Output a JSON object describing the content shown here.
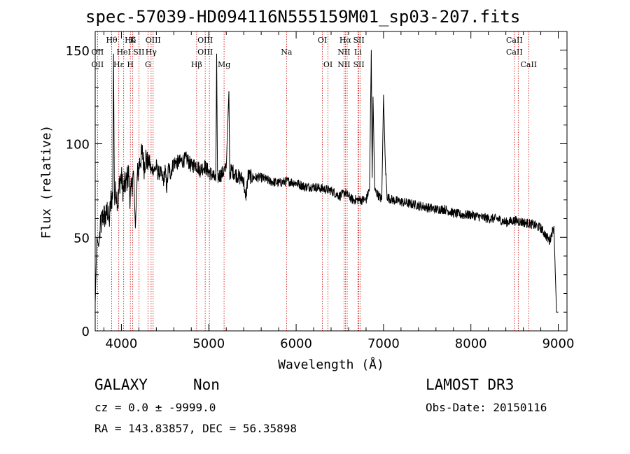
{
  "chart_data": {
    "type": "line",
    "title": "spec-57039-HD094116N555159M01_sp03-207.fits",
    "xlabel": "Wavelength (Å)",
    "ylabel": "Flux (relative)",
    "xlim": [
      3700,
      9100
    ],
    "ylim": [
      0,
      160
    ],
    "xticks": [
      4000,
      5000,
      6000,
      7000,
      8000,
      9000
    ],
    "yticks": [
      0,
      50,
      100,
      150
    ],
    "grid": false,
    "series": [
      {
        "name": "spectrum",
        "color": "#000000",
        "x": [
          3700,
          3720,
          3740,
          3760,
          3780,
          3800,
          3820,
          3840,
          3860,
          3880,
          3900,
          3910,
          3920,
          3940,
          3960,
          3980,
          4000,
          4020,
          4040,
          4060,
          4080,
          4100,
          4120,
          4140,
          4160,
          4180,
          4200,
          4220,
          4240,
          4260,
          4280,
          4300,
          4320,
          4340,
          4360,
          4380,
          4400,
          4420,
          4440,
          4460,
          4480,
          4500,
          4520,
          4540,
          4560,
          4580,
          4600,
          4650,
          4700,
          4750,
          4800,
          4850,
          4900,
          4950,
          5000,
          5050,
          5080,
          5090,
          5100,
          5150,
          5200,
          5230,
          5240,
          5260,
          5300,
          5350,
          5400,
          5420,
          5450,
          5500,
          5600,
          5700,
          5800,
          5900,
          6000,
          6100,
          6200,
          6300,
          6400,
          6500,
          6560,
          6600,
          6650,
          6700,
          6750,
          6800,
          6840,
          6860,
          6870,
          6880,
          6900,
          6950,
          6980,
          7000,
          7020,
          7040,
          7060,
          7100,
          7200,
          7300,
          7400,
          7500,
          7600,
          7700,
          7800,
          7900,
          8000,
          8100,
          8200,
          8300,
          8400,
          8500,
          8600,
          8700,
          8800,
          8900,
          8950,
          8980,
          9000
        ],
        "y": [
          15,
          50,
          45,
          55,
          60,
          62,
          60,
          65,
          58,
          70,
          72,
          148,
          70,
          75,
          68,
          80,
          82,
          75,
          78,
          80,
          85,
          70,
          78,
          84,
          55,
          82,
          88,
          92,
          95,
          88,
          93,
          89,
          91,
          85,
          87,
          86,
          88,
          84,
          85,
          83,
          80,
          86,
          76,
          88,
          84,
          87,
          90,
          90,
          91,
          92,
          88,
          89,
          86,
          88,
          85,
          83,
          80,
          148,
          82,
          84,
          87,
          128,
          84,
          86,
          84,
          82,
          81,
          70,
          83,
          82,
          82,
          80,
          79,
          80,
          79,
          77,
          77,
          76,
          75,
          72,
          74,
          72,
          70,
          70,
          70,
          70,
          76,
          150,
          82,
          125,
          75,
          72,
          70,
          126,
          90,
          72,
          71,
          70,
          69,
          68,
          67,
          66,
          65,
          65,
          63,
          62,
          62,
          61,
          60,
          60,
          58,
          59,
          58,
          57,
          55,
          48,
          56,
          10,
          10
        ]
      }
    ],
    "lines": [
      {
        "wl": 3727,
        "labels": [
          {
            "t": "OII",
            "row": 2
          },
          {
            "t": "OII",
            "row": 3
          }
        ]
      },
      {
        "wl": 3889,
        "labels": [
          {
            "t": "Hθ",
            "row": 1
          }
        ]
      },
      {
        "wl": 3970,
        "labels": [
          {
            "t": "Hε",
            "row": 3
          }
        ]
      },
      {
        "wl": 4026,
        "labels": [
          {
            "t": "HeI",
            "row": 2
          }
        ]
      },
      {
        "wl": 4102,
        "labels": [
          {
            "t": "Hδ",
            "row": 1
          },
          {
            "t": "H",
            "row": 3
          }
        ]
      },
      {
        "wl": 4130,
        "labels": [
          {
            "t": "K",
            "row": 1
          }
        ]
      },
      {
        "wl": 4200,
        "labels": [
          {
            "t": "SII",
            "row": 2
          }
        ]
      },
      {
        "wl": 4304,
        "labels": [
          {
            "t": "G",
            "row": 3
          }
        ]
      },
      {
        "wl": 4340,
        "labels": [
          {
            "t": "Hγ",
            "row": 2
          }
        ]
      },
      {
        "wl": 4363,
        "labels": [
          {
            "t": "OIII",
            "row": 1
          }
        ]
      },
      {
        "wl": 4861,
        "labels": [
          {
            "t": "Hβ",
            "row": 3
          }
        ]
      },
      {
        "wl": 4959,
        "labels": [
          {
            "t": "OIII",
            "row": 1
          },
          {
            "t": "OIII",
            "row": 2
          }
        ]
      },
      {
        "wl": 5007,
        "labels": []
      },
      {
        "wl": 5175,
        "labels": [
          {
            "t": "Mg",
            "row": 3
          }
        ]
      },
      {
        "wl": 5890,
        "labels": [
          {
            "t": "Na",
            "row": 2
          }
        ]
      },
      {
        "wl": 6300,
        "labels": [
          {
            "t": "OI",
            "row": 1
          }
        ]
      },
      {
        "wl": 6364,
        "labels": [
          {
            "t": "OI",
            "row": 3
          }
        ]
      },
      {
        "wl": 6548,
        "labels": [
          {
            "t": "NII",
            "row": 2
          },
          {
            "t": "NII",
            "row": 3
          }
        ]
      },
      {
        "wl": 6563,
        "labels": [
          {
            "t": "Hα",
            "row": 1
          }
        ]
      },
      {
        "wl": 6584,
        "labels": []
      },
      {
        "wl": 6707,
        "labels": [
          {
            "t": "Li",
            "row": 2
          }
        ]
      },
      {
        "wl": 6717,
        "labels": [
          {
            "t": "SII",
            "row": 1
          },
          {
            "t": "SII",
            "row": 3
          }
        ]
      },
      {
        "wl": 6731,
        "labels": []
      },
      {
        "wl": 8498,
        "labels": [
          {
            "t": "CaII",
            "row": 1
          },
          {
            "t": "CaII",
            "row": 2
          }
        ]
      },
      {
        "wl": 8542,
        "labels": []
      },
      {
        "wl": 8662,
        "labels": [
          {
            "t": "CaII",
            "row": 3
          }
        ]
      }
    ],
    "line_color": "#cc0000"
  },
  "info": {
    "object_class": "GALAXY",
    "object_subclass": "Non",
    "survey": "LAMOST DR3",
    "redshift": "cz = 0.0 ± -9999.0",
    "obs_date": "Obs-Date: 20150116",
    "coords": "RA = 143.83857, DEC =  56.35898"
  }
}
